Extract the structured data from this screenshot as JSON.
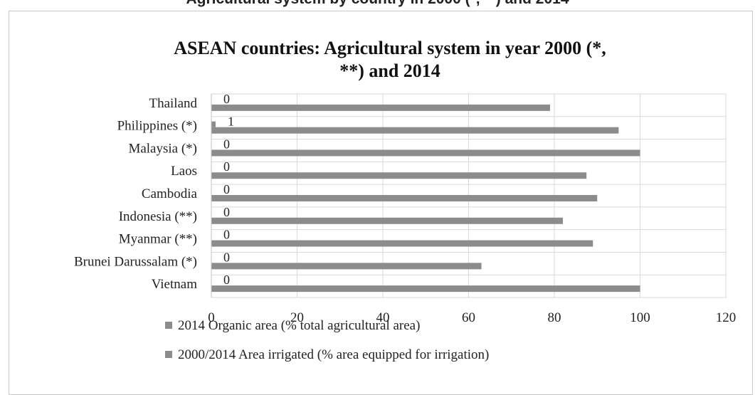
{
  "caption_fragment": "Agricultural system by country in 2000 (*, **) and 2014",
  "chart_data": {
    "type": "bar",
    "orientation": "horizontal",
    "title_lines": [
      "ASEAN countries: Agricultural system in year 2000 (*,",
      "**) and 2014"
    ],
    "categories": [
      "Thailand",
      "Philippines (*)",
      "Malaysia (*)",
      "Laos",
      "Cambodia",
      "Indonesia (**)",
      "Myanmar (**)",
      "Brunei Darussalam (*)",
      "Vietnam"
    ],
    "series": [
      {
        "name": "2014 Organic area (% total agricultural area)",
        "color": "#8c8c8c",
        "values": [
          0,
          1,
          0,
          0,
          0,
          0,
          0,
          0,
          0
        ],
        "data_labels": [
          "0",
          "1",
          "0",
          "0",
          "0",
          "0",
          "0",
          "0",
          "0"
        ]
      },
      {
        "name": "2000/2014 Area irrigated (% area equipped for irrigation)",
        "color": "#8c8c8c",
        "values": [
          79,
          95,
          100,
          87.5,
          90,
          82,
          89,
          63,
          100
        ]
      }
    ],
    "xlim": [
      0,
      120
    ],
    "x_ticks": [
      "0",
      "20",
      "40",
      "60",
      "80",
      "100",
      "120"
    ],
    "grid": true,
    "legend_position": "bottom"
  }
}
